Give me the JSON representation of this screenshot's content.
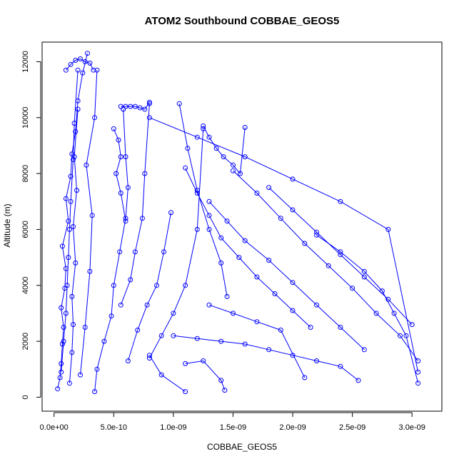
{
  "chart_data": {
    "type": "scatter",
    "title": "ATOM2 Southbound COBBAE_GEOS5",
    "xlabel": "COBBAE_GEOS5",
    "ylabel": "Altitude (m)",
    "xlim": [
      -1e-10,
      3.25e-09
    ],
    "ylim": [
      -500,
      12700
    ],
    "x_ticks": [
      0,
      5e-10,
      1e-09,
      1.5e-09,
      2e-09,
      2.5e-09,
      3e-09
    ],
    "x_tick_labels": [
      "0.0e+00",
      "5.0e-10",
      "1.0e-09",
      "1.5e-09",
      "2.0e-09",
      "2.5e-09",
      "3.0e-09"
    ],
    "y_ticks": [
      0,
      2000,
      4000,
      6000,
      8000,
      10000,
      12000
    ],
    "y_tick_labels": [
      "0",
      "2000",
      "4000",
      "6000",
      "8000",
      "10000",
      "12000"
    ],
    "color": "#0000ff",
    "marker": "open-circle",
    "connected": true,
    "series": [
      {
        "x": [
          3e-11,
          5e-11,
          6e-11,
          7e-11,
          8e-11,
          6e-11,
          9e-11,
          1e-10,
          7e-11,
          1.2e-10,
          1e-10,
          1.4e-10,
          1.5e-10,
          1.8e-10,
          2e-10,
          2.4e-10,
          2.8e-10
        ],
        "y": [
          300,
          700,
          1200,
          1900,
          2500,
          3200,
          3900,
          4600,
          5400,
          6300,
          7100,
          7900,
          8700,
          9500,
          10600,
          11600,
          12300
        ]
      },
      {
        "x": [
          6e-11,
          8e-11,
          1e-10,
          1.1e-10,
          1.2e-10,
          1.3e-10,
          1.4e-10,
          1.6e-10,
          1.7e-10,
          2e-10
        ],
        "y": [
          900,
          2000,
          3000,
          4000,
          5000,
          6000,
          7000,
          8500,
          9800,
          11700
        ]
      },
      {
        "x": [
          1.3e-10,
          1.5e-10,
          1.6e-10,
          1.5e-10,
          1.8e-10,
          1.6e-10,
          1.9e-10,
          1.7e-10,
          2e-10
        ],
        "y": [
          500,
          1600,
          2600,
          3600,
          4800,
          6100,
          7400,
          8600,
          10300
        ]
      },
      {
        "x": [
          2.2e-10,
          2.6e-10,
          3e-10,
          3.2e-10,
          2.7e-10,
          3.4e-10,
          3.6e-10
        ],
        "y": [
          800,
          2500,
          4500,
          6500,
          8300,
          10000,
          11700
        ]
      },
      {
        "x": [
          3.4e-10,
          3.6e-10,
          4.2e-10,
          4.8e-10,
          5e-10,
          5.5e-10,
          6e-10,
          6.2e-10,
          6e-10,
          5.8e-10
        ],
        "y": [
          200,
          1000,
          2000,
          2900,
          4000,
          5200,
          6400,
          7500,
          8600,
          10300
        ]
      },
      {
        "x": [
          5.6e-10,
          6.4e-10,
          6.8e-10,
          7.4e-10,
          7.6e-10,
          8e-10
        ],
        "y": [
          3300,
          4200,
          5200,
          6400,
          8000,
          10500
        ]
      },
      {
        "x": [
          6.2e-10,
          7e-10,
          7.8e-10,
          8.6e-10,
          9.2e-10,
          9.8e-10
        ],
        "y": [
          1300,
          2400,
          3300,
          4000,
          5200,
          6600
        ]
      },
      {
        "x": [
          8e-10,
          9e-10,
          1e-09,
          1.1e-09,
          1.2e-09,
          1.25e-09
        ],
        "y": [
          1400,
          2200,
          3000,
          4000,
          6000,
          9600
        ]
      },
      {
        "x": [
          1.05e-09,
          1.12e-09,
          1.2e-09,
          1.3e-09,
          1.4e-09,
          1.45e-09
        ],
        "y": [
          10500,
          8900,
          7400,
          6000,
          4800,
          3600
        ]
      },
      {
        "x": [
          1.25e-09,
          1.3e-09,
          1.36e-09,
          1.42e-09,
          1.5e-09,
          1.56e-09,
          1.6e-09
        ],
        "y": [
          9700,
          9300,
          8900,
          8600,
          8300,
          8000,
          9650
        ]
      },
      {
        "x": [
          1.1e-09,
          1.2e-09,
          1.3e-09,
          1.4e-09,
          1.55e-09,
          1.7e-09,
          1.85e-09,
          2e-09,
          2.15e-09
        ],
        "y": [
          8200,
          7300,
          6500,
          5700,
          5000,
          4300,
          3700,
          3100,
          2500
        ]
      },
      {
        "x": [
          1.3e-09,
          1.45e-09,
          1.6e-09,
          1.8e-09,
          2e-09,
          2.2e-09,
          2.4e-09,
          2.6e-09
        ],
        "y": [
          7000,
          6300,
          5600,
          4900,
          4100,
          3300,
          2500,
          1700
        ]
      },
      {
        "x": [
          1.5e-09,
          1.7e-09,
          1.9e-09,
          2.1e-09,
          2.3e-09,
          2.5e-09,
          2.7e-09,
          2.9e-09,
          3.05e-09
        ],
        "y": [
          8100,
          7300,
          6400,
          5500,
          4700,
          3900,
          3000,
          2200,
          1300
        ]
      },
      {
        "x": [
          1.8e-09,
          2e-09,
          2.2e-09,
          2.4e-09,
          2.6e-09,
          2.8e-09,
          3e-09
        ],
        "y": [
          7500,
          6700,
          5900,
          5100,
          4300,
          3500,
          2600
        ]
      },
      {
        "x": [
          2.2e-09,
          2.4e-09,
          2.6e-09,
          2.75e-09,
          2.85e-09,
          2.95e-09,
          3.05e-09
        ],
        "y": [
          5800,
          5200,
          4500,
          3800,
          3000,
          2200,
          500
        ]
      },
      {
        "x": [
          1e-09,
          1.2e-09,
          1.4e-09,
          1.6e-09,
          1.8e-09,
          2e-09,
          2.2e-09,
          2.4e-09,
          2.55e-09
        ],
        "y": [
          2200,
          2100,
          2000,
          1900,
          1700,
          1500,
          1300,
          1100,
          600
        ]
      },
      {
        "x": [
          1.3e-09,
          1.5e-09,
          1.7e-09,
          1.9e-09,
          2.1e-09
        ],
        "y": [
          3300,
          3000,
          2700,
          2400,
          700
        ]
      },
      {
        "x": [
          1.1e-09,
          1.25e-09,
          1.4e-09,
          1.43e-09
        ],
        "y": [
          1200,
          1300,
          600,
          250
        ]
      },
      {
        "x": [
          1.1e-09,
          9e-10,
          8e-10
        ],
        "y": [
          200,
          800,
          1500
        ]
      },
      {
        "x": [
          8e-10,
          1.2e-09,
          1.6e-09,
          2e-09,
          2.4e-09,
          2.8e-09,
          3.05e-09
        ],
        "y": [
          10000,
          9300,
          8600,
          7800,
          7000,
          6000,
          900
        ]
      },
      {
        "x": [
          1e-10,
          1.4e-10,
          1.8e-10,
          2.2e-10,
          2.6e-10,
          3e-10,
          3.3e-10
        ],
        "y": [
          11700,
          11900,
          12050,
          12100,
          12000,
          11950,
          11700
        ]
      },
      {
        "x": [
          5.6e-10,
          6e-10,
          6.4e-10,
          6.8e-10,
          7.2e-10,
          7.6e-10,
          8e-10
        ],
        "y": [
          10400,
          10400,
          10400,
          10400,
          10350,
          10300,
          10550
        ]
      },
      {
        "x": [
          5e-10,
          5.4e-10,
          5.6e-10,
          5.2e-10,
          5.6e-10,
          6e-10
        ],
        "y": [
          9600,
          9200,
          8600,
          8000,
          7300,
          6300
        ]
      }
    ]
  }
}
